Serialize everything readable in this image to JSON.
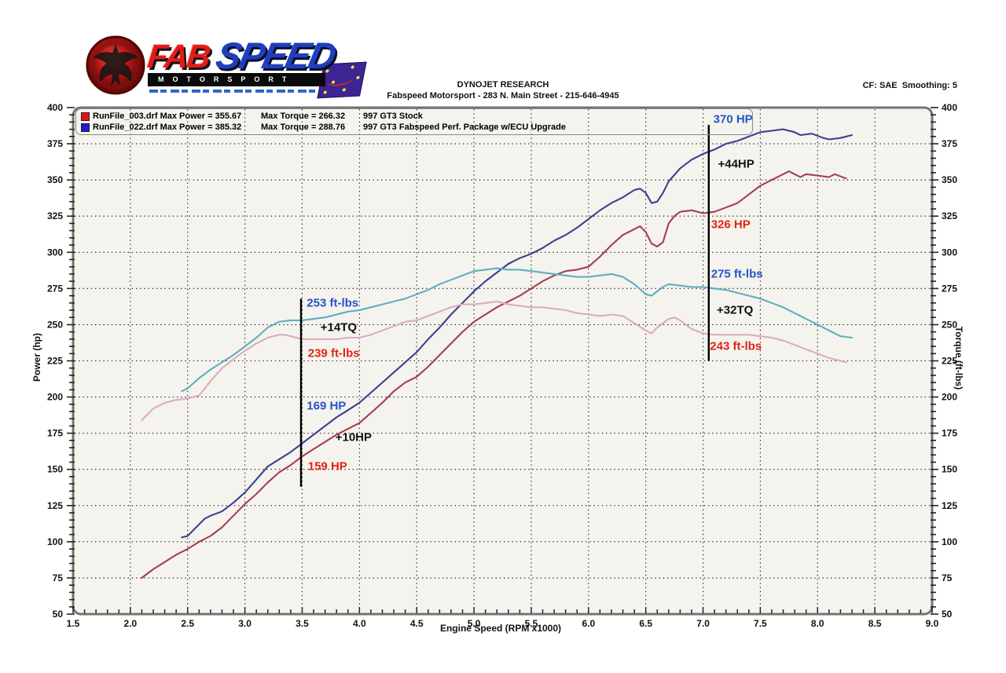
{
  "header": {
    "lab": "DYNOJET RESEARCH",
    "address": "Fabspeed Motorsport - 283 N. Main Street - 215-646-4945",
    "correction": "CF: SAE  Smoothing: 5"
  },
  "logo": {
    "fab": "FAB",
    "speed": "SPEED",
    "motorsport": "MOTORSPORT"
  },
  "legend": {
    "rows": [
      {
        "swatch": "#e8101d",
        "file": "RunFile_003.drf Max Power = 355.67",
        "torque": "Max Torque = 266.32",
        "desc": "997 GT3 Stock"
      },
      {
        "swatch": "#1a1ae0",
        "file": "RunFile_022.drf Max Power = 385.32",
        "torque": "Max Torque = 288.76",
        "desc": "997 GT3 Fabspeed Perf. Package w/ECU Upgrade"
      }
    ]
  },
  "chart_data": {
    "type": "line",
    "xlabel": "Engine Speed (RPM x1000)",
    "ylabel_left": "Power (hp)",
    "ylabel_right": "Torque (ft-lbs)",
    "xlim": [
      1.5,
      9.0
    ],
    "ylim": [
      50,
      400
    ],
    "xticks": [
      1.5,
      2.0,
      2.5,
      3.0,
      3.5,
      4.0,
      4.5,
      5.0,
      5.5,
      6.0,
      6.5,
      7.0,
      7.5,
      8.0,
      8.5,
      9.0
    ],
    "yticks": [
      400,
      375,
      350,
      325,
      300,
      275,
      250,
      225,
      200,
      175,
      150,
      125,
      100,
      75,
      50
    ],
    "x_minor_step": 0.1,
    "y_minor_step": 5,
    "grid": true,
    "plot_bg": "#f5f3ee",
    "frame_color": "#75746f",
    "series": [
      {
        "name": "997 GT3 Fabspeed Perf. Package w/ECU Upgrade - Power (hp)",
        "color": "#3f3f8f",
        "max": 385.32,
        "points": [
          [
            2.45,
            103
          ],
          [
            2.5,
            104
          ],
          [
            2.55,
            108
          ],
          [
            2.6,
            112
          ],
          [
            2.65,
            116
          ],
          [
            2.7,
            118
          ],
          [
            2.8,
            121
          ],
          [
            2.9,
            127
          ],
          [
            3.0,
            134
          ],
          [
            3.1,
            143
          ],
          [
            3.2,
            152
          ],
          [
            3.3,
            157
          ],
          [
            3.4,
            162
          ],
          [
            3.5,
            168
          ],
          [
            3.6,
            174
          ],
          [
            3.7,
            180
          ],
          [
            3.8,
            186
          ],
          [
            3.9,
            191
          ],
          [
            4.0,
            196
          ],
          [
            4.1,
            203
          ],
          [
            4.2,
            210
          ],
          [
            4.3,
            217
          ],
          [
            4.4,
            224
          ],
          [
            4.5,
            231
          ],
          [
            4.6,
            240
          ],
          [
            4.7,
            248
          ],
          [
            4.8,
            257
          ],
          [
            4.9,
            265
          ],
          [
            5.0,
            273
          ],
          [
            5.1,
            280
          ],
          [
            5.2,
            286
          ],
          [
            5.3,
            292
          ],
          [
            5.4,
            296
          ],
          [
            5.5,
            299
          ],
          [
            5.6,
            303
          ],
          [
            5.7,
            308
          ],
          [
            5.8,
            312
          ],
          [
            5.9,
            317
          ],
          [
            6.0,
            323
          ],
          [
            6.1,
            329
          ],
          [
            6.2,
            334
          ],
          [
            6.3,
            338
          ],
          [
            6.4,
            343
          ],
          [
            6.45,
            344
          ],
          [
            6.5,
            341
          ],
          [
            6.55,
            334
          ],
          [
            6.6,
            335
          ],
          [
            6.65,
            341
          ],
          [
            6.7,
            349
          ],
          [
            6.8,
            358
          ],
          [
            6.9,
            364
          ],
          [
            7.0,
            368
          ],
          [
            7.1,
            371
          ],
          [
            7.2,
            375
          ],
          [
            7.3,
            377
          ],
          [
            7.4,
            380
          ],
          [
            7.5,
            383
          ],
          [
            7.6,
            384
          ],
          [
            7.7,
            385
          ],
          [
            7.8,
            383
          ],
          [
            7.85,
            381
          ],
          [
            7.95,
            382
          ],
          [
            8.05,
            379
          ],
          [
            8.1,
            378
          ],
          [
            8.2,
            379
          ],
          [
            8.3,
            381
          ]
        ]
      },
      {
        "name": "997 GT3 Stock - Power (hp)",
        "color": "#a43f52",
        "max": 355.67,
        "points": [
          [
            2.1,
            75
          ],
          [
            2.2,
            81
          ],
          [
            2.3,
            86
          ],
          [
            2.4,
            91
          ],
          [
            2.5,
            95
          ],
          [
            2.6,
            100
          ],
          [
            2.7,
            104
          ],
          [
            2.8,
            110
          ],
          [
            2.9,
            118
          ],
          [
            3.0,
            126
          ],
          [
            3.1,
            133
          ],
          [
            3.2,
            141
          ],
          [
            3.3,
            148
          ],
          [
            3.4,
            153
          ],
          [
            3.5,
            159
          ],
          [
            3.6,
            164
          ],
          [
            3.7,
            169
          ],
          [
            3.8,
            174
          ],
          [
            3.9,
            178
          ],
          [
            4.0,
            182
          ],
          [
            4.1,
            189
          ],
          [
            4.2,
            196
          ],
          [
            4.3,
            204
          ],
          [
            4.4,
            210
          ],
          [
            4.5,
            214
          ],
          [
            4.6,
            221
          ],
          [
            4.7,
            229
          ],
          [
            4.8,
            237
          ],
          [
            4.9,
            245
          ],
          [
            5.0,
            252
          ],
          [
            5.1,
            257
          ],
          [
            5.2,
            262
          ],
          [
            5.3,
            266
          ],
          [
            5.4,
            270
          ],
          [
            5.5,
            275
          ],
          [
            5.6,
            280
          ],
          [
            5.7,
            284
          ],
          [
            5.8,
            287
          ],
          [
            5.9,
            288
          ],
          [
            6.0,
            290
          ],
          [
            6.1,
            297
          ],
          [
            6.2,
            305
          ],
          [
            6.3,
            312
          ],
          [
            6.4,
            316
          ],
          [
            6.45,
            318
          ],
          [
            6.5,
            314
          ],
          [
            6.55,
            306
          ],
          [
            6.6,
            304
          ],
          [
            6.65,
            307
          ],
          [
            6.7,
            320
          ],
          [
            6.75,
            325
          ],
          [
            6.8,
            328
          ],
          [
            6.9,
            329
          ],
          [
            7.0,
            327
          ],
          [
            7.1,
            328
          ],
          [
            7.2,
            331
          ],
          [
            7.3,
            334
          ],
          [
            7.4,
            340
          ],
          [
            7.5,
            346
          ],
          [
            7.6,
            350
          ],
          [
            7.7,
            354
          ],
          [
            7.75,
            356
          ],
          [
            7.8,
            354
          ],
          [
            7.85,
            352
          ],
          [
            7.9,
            354
          ],
          [
            8.0,
            353
          ],
          [
            8.1,
            352
          ],
          [
            8.15,
            354
          ],
          [
            8.25,
            351
          ]
        ]
      },
      {
        "name": "997 GT3 Fabspeed Perf. Package w/ECU Upgrade - Torque (ft-lbs)",
        "color": "#5fafbe",
        "max": 288.76,
        "points": [
          [
            2.45,
            204
          ],
          [
            2.5,
            206
          ],
          [
            2.6,
            213
          ],
          [
            2.7,
            219
          ],
          [
            2.8,
            224
          ],
          [
            2.9,
            229
          ],
          [
            3.0,
            235
          ],
          [
            3.1,
            241
          ],
          [
            3.2,
            248
          ],
          [
            3.3,
            252
          ],
          [
            3.4,
            253
          ],
          [
            3.5,
            253
          ],
          [
            3.6,
            254
          ],
          [
            3.7,
            255
          ],
          [
            3.8,
            257
          ],
          [
            3.9,
            259
          ],
          [
            4.0,
            260
          ],
          [
            4.1,
            262
          ],
          [
            4.2,
            264
          ],
          [
            4.3,
            266
          ],
          [
            4.4,
            268
          ],
          [
            4.5,
            271
          ],
          [
            4.6,
            274
          ],
          [
            4.7,
            278
          ],
          [
            4.8,
            281
          ],
          [
            4.9,
            284
          ],
          [
            5.0,
            287
          ],
          [
            5.1,
            288
          ],
          [
            5.2,
            289
          ],
          [
            5.3,
            288
          ],
          [
            5.4,
            288
          ],
          [
            5.5,
            287
          ],
          [
            5.6,
            286
          ],
          [
            5.7,
            285
          ],
          [
            5.8,
            284
          ],
          [
            5.9,
            283
          ],
          [
            6.0,
            283
          ],
          [
            6.1,
            284
          ],
          [
            6.2,
            285
          ],
          [
            6.3,
            283
          ],
          [
            6.4,
            278
          ],
          [
            6.5,
            271
          ],
          [
            6.55,
            270
          ],
          [
            6.6,
            273
          ],
          [
            6.65,
            276
          ],
          [
            6.7,
            278
          ],
          [
            6.8,
            277
          ],
          [
            6.9,
            276
          ],
          [
            7.0,
            276
          ],
          [
            7.1,
            275
          ],
          [
            7.2,
            274
          ],
          [
            7.3,
            272
          ],
          [
            7.4,
            270
          ],
          [
            7.5,
            268
          ],
          [
            7.6,
            265
          ],
          [
            7.7,
            262
          ],
          [
            7.8,
            258
          ],
          [
            7.9,
            254
          ],
          [
            8.0,
            250
          ],
          [
            8.1,
            246
          ],
          [
            8.2,
            242
          ],
          [
            8.3,
            241
          ]
        ]
      },
      {
        "name": "997 GT3 Stock - Torque (ft-lbs)",
        "color": "#dcacbc",
        "max": 266.32,
        "points": [
          [
            2.1,
            184
          ],
          [
            2.2,
            192
          ],
          [
            2.3,
            196
          ],
          [
            2.4,
            198
          ],
          [
            2.5,
            199
          ],
          [
            2.6,
            201
          ],
          [
            2.7,
            211
          ],
          [
            2.8,
            220
          ],
          [
            2.9,
            226
          ],
          [
            3.0,
            232
          ],
          [
            3.1,
            237
          ],
          [
            3.2,
            241
          ],
          [
            3.3,
            243
          ],
          [
            3.35,
            243
          ],
          [
            3.4,
            242
          ],
          [
            3.5,
            240
          ],
          [
            3.6,
            240
          ],
          [
            3.7,
            240
          ],
          [
            3.8,
            240
          ],
          [
            3.9,
            241
          ],
          [
            4.0,
            241
          ],
          [
            4.1,
            243
          ],
          [
            4.2,
            246
          ],
          [
            4.3,
            249
          ],
          [
            4.4,
            252
          ],
          [
            4.5,
            253
          ],
          [
            4.6,
            256
          ],
          [
            4.7,
            259
          ],
          [
            4.8,
            262
          ],
          [
            4.9,
            264
          ],
          [
            5.0,
            264
          ],
          [
            5.1,
            265
          ],
          [
            5.2,
            266
          ],
          [
            5.3,
            264
          ],
          [
            5.4,
            263
          ],
          [
            5.5,
            262
          ],
          [
            5.6,
            262
          ],
          [
            5.7,
            261
          ],
          [
            5.8,
            260
          ],
          [
            5.9,
            258
          ],
          [
            6.0,
            257
          ],
          [
            6.1,
            256
          ],
          [
            6.2,
            257
          ],
          [
            6.3,
            256
          ],
          [
            6.4,
            251
          ],
          [
            6.5,
            246
          ],
          [
            6.55,
            244
          ],
          [
            6.6,
            248
          ],
          [
            6.7,
            254
          ],
          [
            6.75,
            255
          ],
          [
            6.8,
            253
          ],
          [
            6.9,
            247
          ],
          [
            7.0,
            244
          ],
          [
            7.1,
            243
          ],
          [
            7.2,
            243
          ],
          [
            7.3,
            243
          ],
          [
            7.4,
            243
          ],
          [
            7.5,
            242
          ],
          [
            7.6,
            241
          ],
          [
            7.7,
            239
          ],
          [
            7.8,
            236
          ],
          [
            7.9,
            233
          ],
          [
            8.0,
            230
          ],
          [
            8.1,
            227
          ],
          [
            8.2,
            225
          ],
          [
            8.25,
            224
          ]
        ]
      }
    ],
    "markers": [
      {
        "rpm": 3.49,
        "from": 268,
        "to": 138
      },
      {
        "rpm": 7.05,
        "from": 388,
        "to": 225
      }
    ],
    "annotations": [
      {
        "text": "253 ft-lbs",
        "color": "#2356c7",
        "rpm": 3.54,
        "value": 265
      },
      {
        "text": "+14TQ",
        "color": "#111111",
        "rpm": 3.66,
        "value": 248
      },
      {
        "text": "239 ft-lbs",
        "color": "#e02413",
        "rpm": 3.55,
        "value": 230
      },
      {
        "text": "169 HP",
        "color": "#2356c7",
        "rpm": 3.54,
        "value": 194
      },
      {
        "text": "+10HP",
        "color": "#111111",
        "rpm": 3.79,
        "value": 172
      },
      {
        "text": "159 HP",
        "color": "#e02413",
        "rpm": 3.55,
        "value": 152
      },
      {
        "text": "370 HP",
        "color": "#2356c7",
        "rpm": 7.09,
        "value": 392
      },
      {
        "text": "+44HP",
        "color": "#111111",
        "rpm": 7.13,
        "value": 361
      },
      {
        "text": "326 HP",
        "color": "#e02413",
        "rpm": 7.07,
        "value": 319
      },
      {
        "text": "275 ft-lbs",
        "color": "#2356c7",
        "rpm": 7.07,
        "value": 285
      },
      {
        "text": "+32TQ",
        "color": "#111111",
        "rpm": 7.12,
        "value": 260
      },
      {
        "text": "243 ft-lbs",
        "color": "#e02413",
        "rpm": 7.06,
        "value": 235
      }
    ]
  }
}
